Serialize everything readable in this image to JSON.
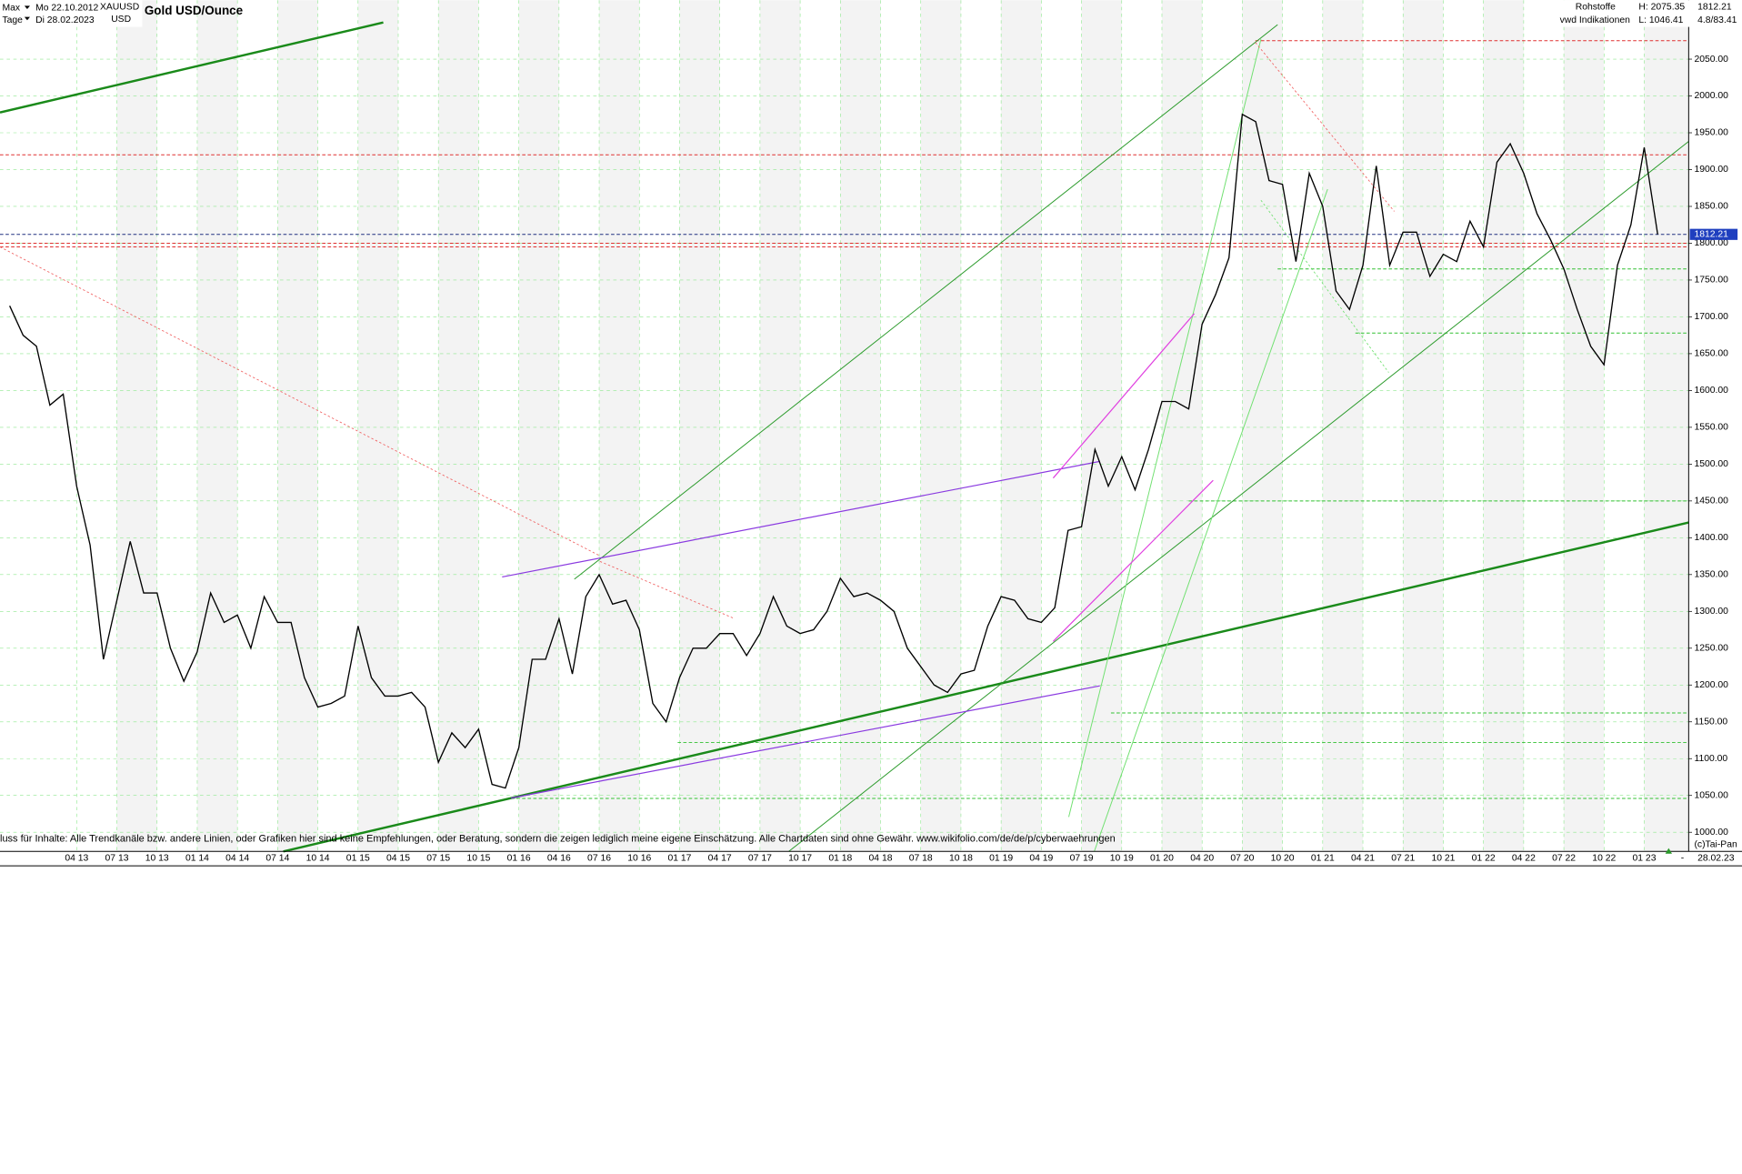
{
  "chart_data": {
    "type": "line",
    "title": "Gold USD/Ounce",
    "symbol": "XAUUSD",
    "currency": "USD",
    "range_label": "Max",
    "period_label": "Tage",
    "start_date": "Mo 22.10.2012",
    "end_date": "Di 28.02.2023",
    "info": {
      "group": "Rohstoffe",
      "source": "vwd Indikationen",
      "high": "H: 2075.35",
      "low": "L: 1046.41",
      "last": "1812.21",
      "change": "4.8/83.41"
    },
    "price_tag": "1812.21",
    "disclaimer": "luss für Inhalte: Alle Trendkanäle bzw. andere Linien, oder Grafiken hier sind keine Empfehlungen, oder Beratung, sondern die zeigen lediglich meine eigene Einschätzung. Alle Chartdaten sind ohne Gewähr.  www.wikifolio.com/de/de/p/cyberwaehrungen",
    "copyright": "(c)Tai-Pan",
    "axis_date": "28.02.23",
    "axis_dash": "-",
    "categories": [
      null,
      null,
      null,
      null,
      null,
      "04 13",
      null,
      null,
      "07 13",
      null,
      null,
      "10 13",
      null,
      null,
      "01 14",
      null,
      null,
      "04 14",
      null,
      null,
      "07 14",
      null,
      null,
      "10 14",
      null,
      null,
      "01 15",
      null,
      null,
      "04 15",
      null,
      null,
      "07 15",
      null,
      null,
      "10 15",
      null,
      null,
      "01 16",
      null,
      null,
      "04 16",
      null,
      null,
      "07 16",
      null,
      null,
      "10 16",
      null,
      null,
      "01 17",
      null,
      null,
      "04 17",
      null,
      null,
      "07 17",
      null,
      null,
      "10 17",
      null,
      null,
      "01 18",
      null,
      null,
      "04 18",
      null,
      null,
      "07 18",
      null,
      null,
      "10 18",
      null,
      null,
      "01 19",
      null,
      null,
      "04 19",
      null,
      null,
      "07 19",
      null,
      null,
      "10 19",
      null,
      null,
      "01 20",
      null,
      null,
      "04 20",
      null,
      null,
      "07 20",
      null,
      null,
      "10 20",
      null,
      null,
      "01 21",
      null,
      null,
      "04 21",
      null,
      null,
      "07 21",
      null,
      null,
      "10 21",
      null,
      null,
      "01 22",
      null,
      null,
      "04 22",
      null,
      null,
      "07 22",
      null,
      null,
      "10 22",
      null,
      null,
      "01 23",
      null
    ],
    "series": [
      {
        "name": "XAUUSD",
        "color": "#000000",
        "values": [
          1715,
          1675,
          1660,
          1580,
          1595,
          1470,
          1390,
          1235,
          1315,
          1395,
          1325,
          1325,
          1250,
          1205,
          1245,
          1325,
          1285,
          1295,
          1250,
          1320,
          1285,
          1285,
          1210,
          1170,
          1175,
          1185,
          1280,
          1210,
          1185,
          1185,
          1190,
          1170,
          1095,
          1135,
          1115,
          1140,
          1065,
          1060,
          1115,
          1235,
          1235,
          1290,
          1215,
          1320,
          1350,
          1310,
          1315,
          1275,
          1175,
          1150,
          1210,
          1250,
          1250,
          1270,
          1270,
          1240,
          1270,
          1320,
          1280,
          1270,
          1275,
          1300,
          1345,
          1320,
          1325,
          1315,
          1300,
          1250,
          1225,
          1200,
          1190,
          1215,
          1220,
          1280,
          1320,
          1315,
          1290,
          1285,
          1305,
          1410,
          1415,
          1520,
          1470,
          1510,
          1465,
          1520,
          1585,
          1585,
          1575,
          1690,
          1730,
          1780,
          1975,
          1965,
          1885,
          1880,
          1775,
          1895,
          1850,
          1735,
          1710,
          1770,
          1905,
          1770,
          1815,
          1815,
          1755,
          1785,
          1775,
          1830,
          1795,
          1910,
          1935,
          1895,
          1840,
          1805,
          1765,
          1710,
          1660,
          1635,
          1770,
          1825,
          1930,
          1812
        ]
      }
    ],
    "ylim": [
      974,
      2130
    ],
    "yticks": [
      {
        "value": 1000,
        "label": "1000.00"
      },
      {
        "value": 1050,
        "label": "1050.00"
      },
      {
        "value": 1100,
        "label": "1100.00"
      },
      {
        "value": 1150,
        "label": "1150.00"
      },
      {
        "value": 1200,
        "label": "1200.00"
      },
      {
        "value": 1250,
        "label": "1250.00"
      },
      {
        "value": 1300,
        "label": "1300.00"
      },
      {
        "value": 1350,
        "label": "1350.00"
      },
      {
        "value": 1400,
        "label": "1400.00"
      },
      {
        "value": 1450,
        "label": "1450.00"
      },
      {
        "value": 1500,
        "label": "1500.00"
      },
      {
        "value": 1550,
        "label": "1550.00"
      },
      {
        "value": 1600,
        "label": "1600.00"
      },
      {
        "value": 1650,
        "label": "1650.00"
      },
      {
        "value": 1700,
        "label": "1700.00"
      },
      {
        "value": 1750,
        "label": "1750.00"
      },
      {
        "value": 1800,
        "label": "1800.00"
      },
      {
        "value": 1850,
        "label": "1850.00"
      },
      {
        "value": 1900,
        "label": "1900.00"
      },
      {
        "value": 1950,
        "label": "1950.00"
      },
      {
        "value": 2000,
        "label": "2000.00"
      },
      {
        "value": 2050,
        "label": "2050.00"
      }
    ],
    "grid": true,
    "reference_lines": [
      {
        "value": 2075,
        "color": "#e03030"
      },
      {
        "value": 1920,
        "color": "#e03030"
      },
      {
        "value": 1812,
        "color": "#203080"
      },
      {
        "value": 1800,
        "color": "#e03030"
      },
      {
        "value": 1795,
        "color": "#e03030"
      },
      {
        "value": 1765,
        "color": "#30c030"
      },
      {
        "value": 1678,
        "color": "#30c030"
      },
      {
        "value": 1450,
        "color": "#30c030"
      },
      {
        "value": 1162,
        "color": "#30c030"
      },
      {
        "value": 1122,
        "color": "#30c030"
      },
      {
        "value": 1046,
        "color": "#30c030"
      }
    ]
  }
}
